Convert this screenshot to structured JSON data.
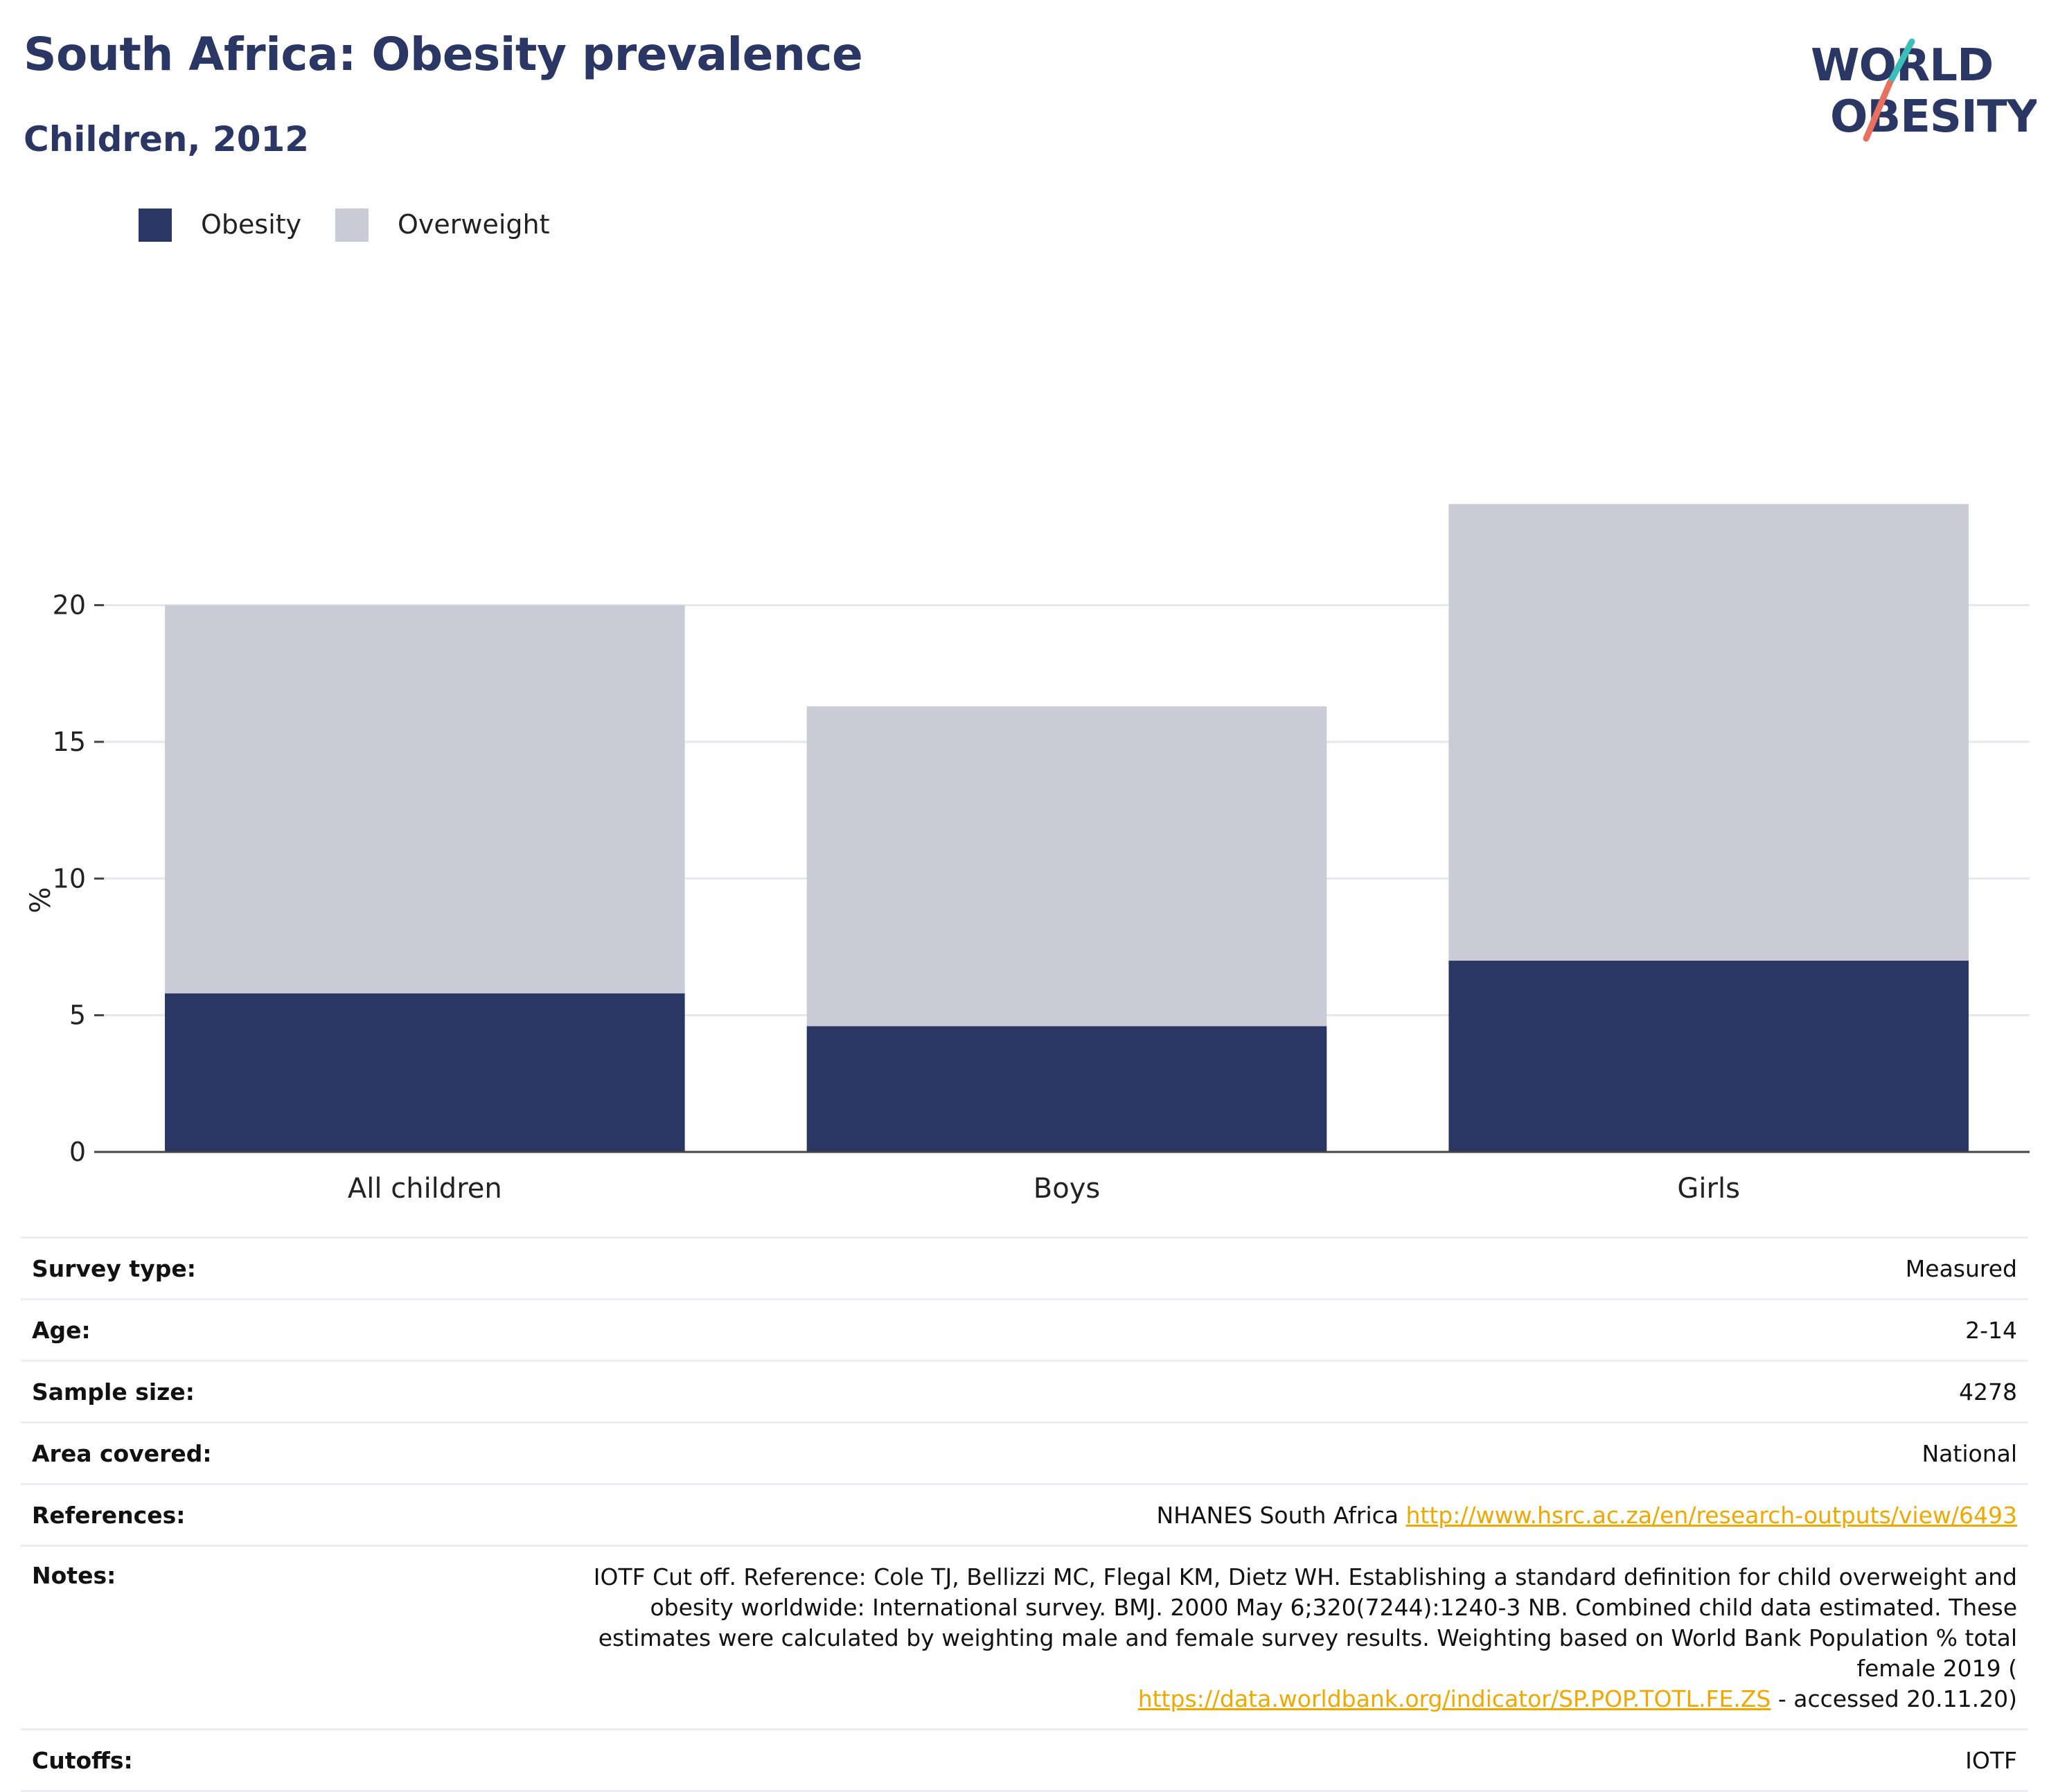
{
  "header": {
    "title": "South Africa: Obesity prevalence",
    "subtitle": "Children, 2012",
    "logo_line1": "WORLD",
    "logo_line2": "OBESITY"
  },
  "colors": {
    "obesity": "#2a3664",
    "overweight": "#cacbd6",
    "accent_teal": "#3bbfb8",
    "accent_coral": "#e8705f",
    "link": "#f0a800"
  },
  "legend": [
    {
      "name": "Obesity",
      "color": "#2a3664"
    },
    {
      "name": "Overweight",
      "color": "#cacbd6"
    }
  ],
  "chart_data": {
    "type": "bar",
    "stacked": true,
    "categories": [
      "All children",
      "Boys",
      "Girls"
    ],
    "series": [
      {
        "name": "Obesity",
        "values": [
          5.8,
          4.6,
          7.0
        ]
      },
      {
        "name": "Overweight",
        "values": [
          14.2,
          11.7,
          16.7
        ]
      }
    ],
    "ylabel": "%",
    "yticks": [
      0,
      5,
      10,
      15,
      20
    ],
    "ylim": [
      0,
      24.5
    ],
    "grid": true,
    "legend_position": "top-left"
  },
  "info": {
    "survey_type": {
      "label": "Survey type:",
      "value": "Measured"
    },
    "age": {
      "label": "Age:",
      "value": "2-14"
    },
    "sample_size": {
      "label": "Sample size:",
      "value": "4278"
    },
    "area_covered": {
      "label": "Area covered:",
      "value": "National"
    },
    "references": {
      "label": "References:",
      "text": "NHANES South Africa ",
      "link": "http://www.hsrc.ac.za/en/research-outputs/view/6493"
    },
    "notes": {
      "label": "Notes:",
      "text": "IOTF Cut off. Reference: Cole TJ, Bellizzi MC, Flegal KM, Dietz WH. Establishing a standard definition for child overweight and obesity worldwide: International survey. BMJ. 2000 May 6;320(7244):1240-3 NB. Combined child data estimated. These estimates were calculated by weighting male and female survey results. Weighting based on World Bank Population % total female 2019 (",
      "link": "https://data.worldbank.org/indicator/SP.POP.TOTL.FE.ZS",
      "suffix": " - accessed 20.11.20)"
    },
    "cutoffs": {
      "label": "Cutoffs:",
      "value": "IOTF"
    }
  }
}
